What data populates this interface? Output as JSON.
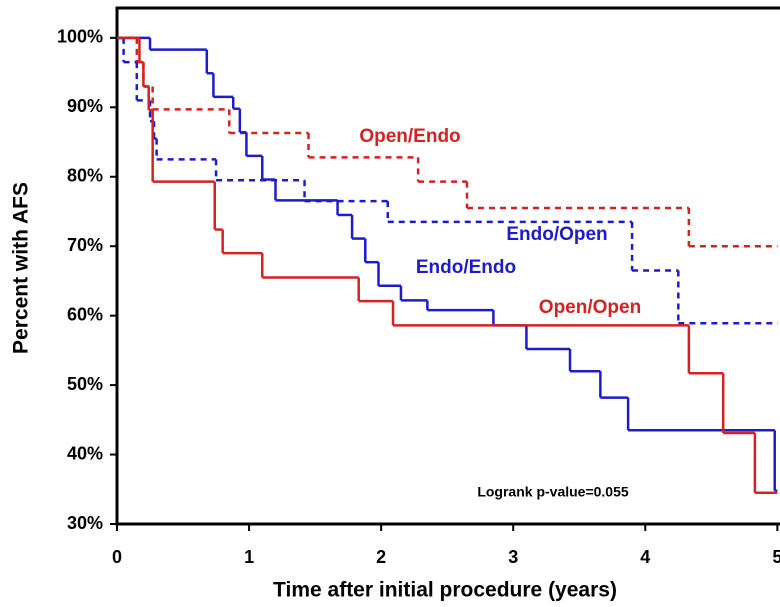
{
  "chart_data": {
    "type": "step",
    "x_label": "Time after initial procedure (years)",
    "y_label": "Percent with AFS",
    "annotation": "Logrank p-value=0.055",
    "xlim": [
      0,
      5.02
    ],
    "ylim": [
      30,
      104.3
    ],
    "xticks": [
      0,
      1,
      2,
      3,
      4,
      5
    ],
    "yticks": [
      {
        "value": 30,
        "label": "30%"
      },
      {
        "value": 40,
        "label": "40%"
      },
      {
        "value": 50,
        "label": "50%"
      },
      {
        "value": 60,
        "label": "60%"
      },
      {
        "value": 70,
        "label": "70%"
      },
      {
        "value": 80,
        "label": "80%"
      },
      {
        "value": 90,
        "label": "90%"
      },
      {
        "value": 100,
        "label": "100%"
      }
    ],
    "series": [
      {
        "name": "Open/Endo",
        "color": "#d42222",
        "dashed": true,
        "x": [
          0,
          0.15,
          0.2,
          0.27,
          0.85,
          1.45,
          2.28,
          2.65,
          4.33,
          5
        ],
        "values": [
          100,
          96.5,
          93,
          89.7,
          86.3,
          82.8,
          79.3,
          75.5,
          70,
          70
        ]
      },
      {
        "name": "Endo/Open",
        "color": "#1c1ccc",
        "dashed": true,
        "x": [
          0,
          0.05,
          0.15,
          0.25,
          0.28,
          0.3,
          0.75,
          1.42,
          2.05,
          3.9,
          4.25,
          5
        ],
        "values": [
          100,
          96.5,
          91,
          88,
          85.5,
          82.5,
          79.5,
          76.5,
          73.5,
          66.5,
          58.9,
          58.9
        ]
      },
      {
        "name": "Endo/Endo",
        "color": "#1c1ccc",
        "dashed": false,
        "x": [
          0,
          0.25,
          0.68,
          0.73,
          0.88,
          0.93,
          0.98,
          1.1,
          1.2,
          1.67,
          1.78,
          1.88,
          1.98,
          2.15,
          2.35,
          2.85,
          3.1,
          3.43,
          3.66,
          3.87,
          4.98,
          5
        ],
        "values": [
          100,
          98.3,
          94.9,
          91.5,
          89.8,
          86.4,
          83,
          79.6,
          76.6,
          74.5,
          71.1,
          67.7,
          64.3,
          62.2,
          60.8,
          58.6,
          55.2,
          52,
          48.2,
          43.5,
          34.8,
          34.8
        ]
      },
      {
        "name": "Open/Open",
        "color": "#d42222",
        "dashed": false,
        "x": [
          0,
          0.17,
          0.2,
          0.24,
          0.27,
          0.74,
          0.8,
          1.1,
          1.83,
          2.09,
          4.33,
          4.59,
          4.83,
          5
        ],
        "values": [
          100,
          96.5,
          93,
          89.6,
          79.3,
          72.4,
          69,
          65.5,
          62.1,
          58.6,
          51.7,
          43.1,
          34.5,
          34.5
        ]
      }
    ]
  }
}
